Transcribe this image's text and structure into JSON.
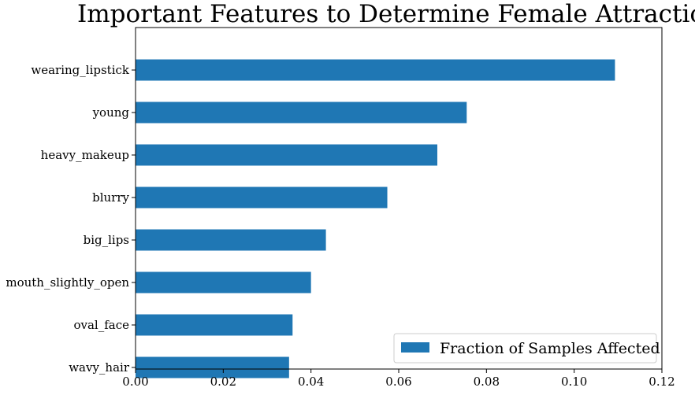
{
  "chart_data": {
    "type": "bar",
    "orientation": "horizontal",
    "title": "Important Features to Determine Female Attraction",
    "xlabel": "",
    "ylabel": "",
    "xlim": [
      0,
      0.12
    ],
    "xticks": [
      0.0,
      0.02,
      0.04,
      0.06,
      0.08,
      0.1,
      0.12
    ],
    "xtick_labels": [
      "0.00",
      "0.02",
      "0.04",
      "0.06",
      "0.08",
      "0.10",
      "0.12"
    ],
    "categories": [
      "wearing_lipstick",
      "young",
      "heavy_makeup",
      "blurry",
      "big_lips",
      "mouth_slightly_open",
      "oval_face",
      "wavy_hair"
    ],
    "series": [
      {
        "name": "Fraction of Samples Affected",
        "color": "#1f77b4",
        "values": [
          0.1093,
          0.0755,
          0.0688,
          0.0574,
          0.0434,
          0.04,
          0.0358,
          0.035
        ]
      }
    ],
    "grid": false,
    "legend_position": "lower-right"
  }
}
